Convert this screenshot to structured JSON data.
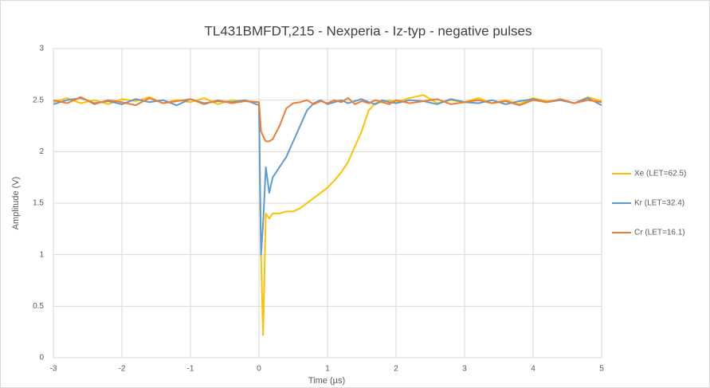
{
  "chart_data": {
    "type": "line",
    "title": "TL431BMFDT,215 - Nexperia - Iz-typ - negative pulses",
    "x_label": "Time (µs)",
    "y_label": "Amplitude (V)",
    "x": [
      -3,
      -2.8,
      -2.6,
      -2.4,
      -2.2,
      -2,
      -1.8,
      -1.6,
      -1.4,
      -1.2,
      -1,
      -0.8,
      -0.6,
      -0.4,
      -0.2,
      0,
      0.03,
      0.06,
      0.1,
      0.15,
      0.2,
      0.3,
      0.4,
      0.5,
      0.6,
      0.7,
      0.8,
      0.9,
      1.0,
      1.1,
      1.2,
      1.3,
      1.4,
      1.5,
      1.6,
      1.7,
      1.8,
      1.9,
      2.0,
      2.2,
      2.4,
      2.6,
      2.8,
      3.0,
      3.2,
      3.4,
      3.6,
      3.8,
      4.0,
      4.2,
      4.4,
      4.6,
      4.8,
      5.0
    ],
    "series": [
      {
        "name": "Xe (LET=62.5)",
        "color": "#ffc000",
        "values": [
          2.48,
          2.52,
          2.47,
          2.5,
          2.46,
          2.51,
          2.49,
          2.53,
          2.47,
          2.5,
          2.48,
          2.52,
          2.46,
          2.5,
          2.49,
          2.48,
          1.0,
          0.22,
          1.4,
          1.35,
          1.4,
          1.4,
          1.42,
          1.42,
          1.45,
          1.5,
          1.55,
          1.6,
          1.65,
          1.72,
          1.8,
          1.9,
          2.05,
          2.2,
          2.4,
          2.47,
          2.48,
          2.5,
          2.48,
          2.52,
          2.55,
          2.47,
          2.5,
          2.48,
          2.52,
          2.47,
          2.5,
          2.46,
          2.52,
          2.49,
          2.5,
          2.47,
          2.53,
          2.49
        ]
      },
      {
        "name": "Kr (LET=32.4)",
        "color": "#5b9bd5",
        "values": [
          2.46,
          2.5,
          2.52,
          2.47,
          2.49,
          2.46,
          2.51,
          2.48,
          2.5,
          2.45,
          2.51,
          2.47,
          2.49,
          2.48,
          2.5,
          2.45,
          1.0,
          1.3,
          1.85,
          1.6,
          1.75,
          1.85,
          1.95,
          2.1,
          2.25,
          2.4,
          2.47,
          2.5,
          2.46,
          2.48,
          2.5,
          2.47,
          2.49,
          2.51,
          2.48,
          2.46,
          2.5,
          2.48,
          2.47,
          2.5,
          2.49,
          2.46,
          2.51,
          2.48,
          2.47,
          2.5,
          2.46,
          2.49,
          2.51,
          2.48,
          2.5,
          2.47,
          2.52,
          2.45
        ]
      },
      {
        "name": "Cr (LET=16.1)",
        "color": "#ed7d31",
        "values": [
          2.5,
          2.47,
          2.53,
          2.46,
          2.5,
          2.48,
          2.45,
          2.52,
          2.47,
          2.49,
          2.51,
          2.46,
          2.5,
          2.47,
          2.49,
          2.48,
          2.2,
          2.15,
          2.1,
          2.1,
          2.12,
          2.25,
          2.42,
          2.47,
          2.48,
          2.5,
          2.46,
          2.49,
          2.47,
          2.5,
          2.48,
          2.52,
          2.46,
          2.49,
          2.47,
          2.5,
          2.48,
          2.46,
          2.5,
          2.47,
          2.49,
          2.51,
          2.46,
          2.48,
          2.5,
          2.47,
          2.49,
          2.45,
          2.5,
          2.48,
          2.51,
          2.47,
          2.5,
          2.48
        ]
      }
    ],
    "xlim": [
      -3,
      5
    ],
    "xticks": [
      -3,
      -2,
      -1,
      0,
      1,
      2,
      3,
      4,
      5
    ],
    "ylim": [
      0,
      3
    ],
    "yticks": [
      0,
      0.5,
      1,
      1.5,
      2,
      2.5,
      3
    ],
    "grid": true,
    "legend": "right"
  }
}
